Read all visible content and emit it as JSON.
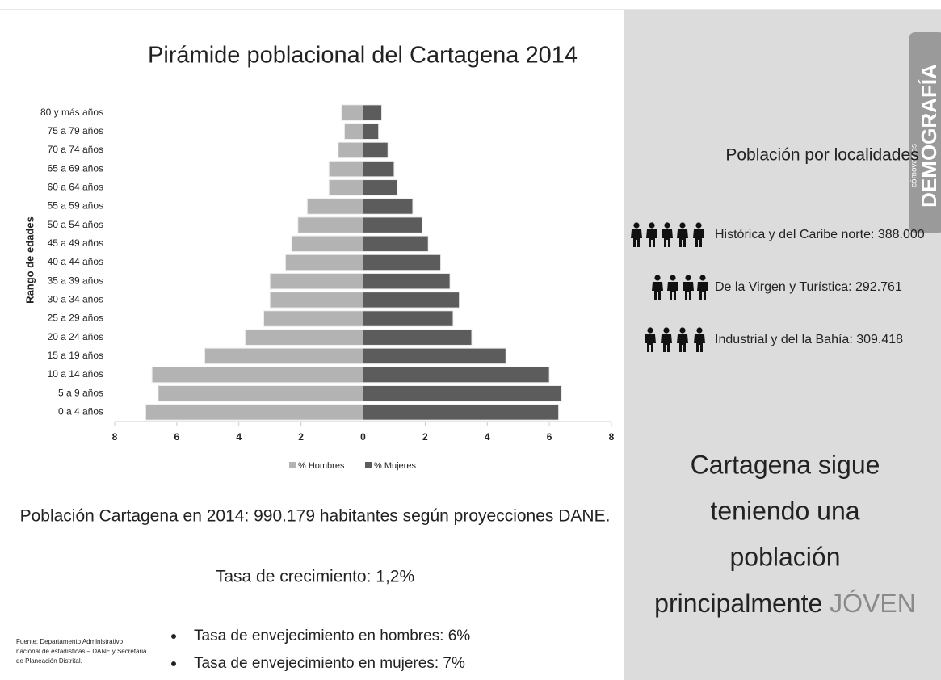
{
  "chart_data": {
    "type": "bar",
    "orientation": "horizontal",
    "title": "Pirámide poblacional del Cartagena 2014",
    "y_label": "Rango de edades",
    "categories": [
      "0 a 4 años",
      "5 a 9 años",
      "10 a 14 años",
      "15 a 19 años",
      "20 a 24 años",
      "25 a 29 años",
      "30 a 34 años",
      "35 a 39 años",
      "40 a 44 años",
      "45 a 49 años",
      "50 a 54 años",
      "55 a 59 años",
      "60 a 64 años",
      "65 a 69 años",
      "70 a 74 años",
      "75 a 79 años",
      "80 y más años"
    ],
    "series": [
      {
        "name": "% Hombres",
        "color": "#b3b3b3",
        "values": [
          -7.0,
          -6.6,
          -6.8,
          -5.1,
          -3.8,
          -3.2,
          -3.0,
          -3.0,
          -2.5,
          -2.3,
          -2.1,
          -1.8,
          -1.1,
          -1.1,
          -0.8,
          -0.6,
          -0.7
        ]
      },
      {
        "name": "% Mujeres",
        "color": "#5c5c5c",
        "values": [
          6.3,
          6.4,
          6.0,
          4.6,
          3.5,
          2.9,
          3.1,
          2.8,
          2.5,
          2.1,
          1.9,
          1.6,
          1.1,
          1.0,
          0.8,
          0.5,
          0.6
        ]
      }
    ],
    "xlim": [
      -8,
      8
    ],
    "xticks": [
      {
        "value": -8,
        "label": "8"
      },
      {
        "value": -6,
        "label": "6"
      },
      {
        "value": -4,
        "label": "4"
      },
      {
        "value": -2,
        "label": "2"
      },
      0,
      2,
      4,
      6,
      8
    ],
    "legend": "bottom"
  },
  "slide": {
    "population": "Población Cartagena en 2014: 990.179 habitantes según proyecciones DANE.",
    "growth": "Tasa de crecimiento: 1,2%",
    "bullets": [
      "Tasa de envejecimiento en hombres: 6%",
      "Tasa de envejecimiento en mujeres: 7%"
    ],
    "source": [
      "Fuente: Departamento Administrativo",
      "nacional de estadísticas – DANE y Secretaria",
      "de Planeación Distrital."
    ],
    "tab": {
      "brand": "cómovamos",
      "section": "DEMOGRAFÍA"
    },
    "localities_title": "Población por localidades",
    "localities": [
      "Histórica y del Caribe norte: 388.000",
      "De la Virgen y Turística: 292.761",
      "Industrial y del la Bahía: 309.418"
    ],
    "message": [
      "Cartagena sigue",
      "teniendo una",
      "población",
      "principalmente",
      "JÓVEN"
    ]
  }
}
